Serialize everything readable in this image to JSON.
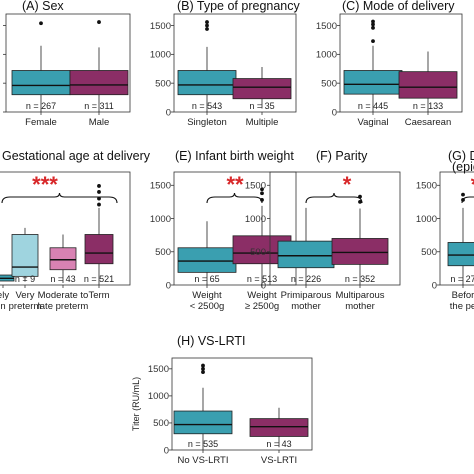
{
  "colors": {
    "teal": "#3a9fb0",
    "purple": "#8b2e66",
    "lightblue": "#9fd4df",
    "pink": "#d882b3",
    "stars": "#d8282a"
  },
  "chart_data": [
    {
      "type": "boxplot",
      "id": "A",
      "title": "(A)  Sex",
      "yticks": [
        0,
        500,
        1000,
        1500
      ],
      "ylim": [
        0,
        1700
      ],
      "boxes": [
        {
          "label": "Female",
          "n": "n = 267",
          "q1": 300,
          "median": 460,
          "q3": 720,
          "lo": 0,
          "hi": 1150,
          "outliers": [
            1540
          ],
          "color": "#3a9fb0"
        },
        {
          "label": "Male",
          "n": "n = 311",
          "q1": 300,
          "median": 470,
          "q3": 720,
          "lo": 0,
          "hi": 1120,
          "outliers": [
            1560
          ],
          "color": "#8b2e66"
        }
      ]
    },
    {
      "type": "boxplot",
      "id": "B",
      "title": "(B)  Type of pregnancy",
      "yticks": [
        0,
        500,
        1000,
        1500
      ],
      "ylim": [
        0,
        1700
      ],
      "boxes": [
        {
          "label": "Singleton",
          "n": "n = 543",
          "q1": 300,
          "median": 470,
          "q3": 720,
          "lo": 0,
          "hi": 1130,
          "outliers": [
            1440,
            1500,
            1560
          ],
          "color": "#3a9fb0"
        },
        {
          "label": "Multiple",
          "n": "n = 35",
          "q1": 230,
          "median": 430,
          "q3": 580,
          "lo": 60,
          "hi": 780,
          "outliers": [],
          "color": "#8b2e66"
        }
      ]
    },
    {
      "type": "boxplot",
      "id": "C",
      "title": "(C)  Mode of delivery",
      "yticks": [
        0,
        500,
        1000,
        1500
      ],
      "ylim": [
        0,
        1700
      ],
      "boxes": [
        {
          "label": "Vaginal",
          "n": "n = 445",
          "q1": 310,
          "median": 480,
          "q3": 720,
          "lo": 0,
          "hi": 1150,
          "outliers": [
            1230,
            1460,
            1520,
            1570
          ],
          "color": "#3a9fb0"
        },
        {
          "label": "Caesarean",
          "n": "n = 133",
          "q1": 240,
          "median": 430,
          "q3": 700,
          "lo": 0,
          "hi": 1050,
          "outliers": [],
          "color": "#8b2e66"
        }
      ]
    },
    {
      "type": "boxplot",
      "id": "D",
      "title": "Gestational age at delivery",
      "yticks": [],
      "ylim": [
        0,
        1700
      ],
      "stars": "***",
      "boxes": [
        {
          "label": "ely",
          "label2": "n",
          "n": "",
          "q1": 60,
          "median": 100,
          "q3": 150,
          "lo": 60,
          "hi": 150,
          "outliers": [],
          "color": "#3a9fb0"
        },
        {
          "label": "Very",
          "label2": "preterm",
          "n": "n = 9",
          "q1": 130,
          "median": 270,
          "q3": 760,
          "lo": 50,
          "hi": 860,
          "outliers": [],
          "color": "#9fd4df"
        },
        {
          "label": "Moderate to",
          "label2": "late preterm",
          "n": "n = 43",
          "q1": 230,
          "median": 380,
          "q3": 560,
          "lo": 30,
          "hi": 760,
          "outliers": [],
          "color": "#d882b3"
        },
        {
          "label": "Term",
          "label2": "",
          "n": "n = 521",
          "q1": 320,
          "median": 480,
          "q3": 760,
          "lo": 0,
          "hi": 1160,
          "outliers": [
            1210,
            1300,
            1400,
            1490
          ],
          "color": "#8b2e66"
        }
      ]
    },
    {
      "type": "boxplot",
      "id": "E",
      "title": "(E)  Infant birth weight",
      "yticks": [
        0,
        500,
        1000,
        1500
      ],
      "ylim": [
        0,
        1700
      ],
      "stars": "**",
      "boxes": [
        {
          "label": "Weight",
          "label2": "< 2500g",
          "n": "n = 65",
          "q1": 190,
          "median": 360,
          "q3": 560,
          "lo": 0,
          "hi": 960,
          "outliers": [],
          "color": "#3a9fb0"
        },
        {
          "label": "Weight",
          "label2": "≥ 2500g",
          "n": "n = 513",
          "q1": 320,
          "median": 480,
          "q3": 740,
          "lo": 0,
          "hi": 1190,
          "outliers": [
            1280,
            1380,
            1440
          ],
          "color": "#8b2e66"
        }
      ]
    },
    {
      "type": "boxplot",
      "id": "F",
      "title": "(F)  Parity",
      "yticks": [
        0,
        500,
        1000,
        1500
      ],
      "ylim": [
        0,
        1700
      ],
      "stars": "*",
      "boxes": [
        {
          "label": "Primiparous",
          "label2": "mother",
          "n": "n = 226",
          "q1": 260,
          "median": 440,
          "q3": 660,
          "lo": 0,
          "hi": 1160,
          "outliers": [],
          "color": "#3a9fb0"
        },
        {
          "label": "Multiparous",
          "label2": "mother",
          "n": "n = 352",
          "q1": 310,
          "median": 490,
          "q3": 700,
          "lo": 0,
          "hi": 1150,
          "outliers": [
            1250,
            1330
          ],
          "color": "#8b2e66"
        }
      ]
    },
    {
      "type": "boxplot",
      "id": "G",
      "title": "(G) D",
      "title2": "(epic",
      "yticks": [
        0,
        500,
        1000,
        1500
      ],
      "ylim": [
        0,
        1700
      ],
      "stars": "*",
      "boxes": [
        {
          "label": "Befor",
          "label2": "the pe",
          "n": "n = 27",
          "q1": 290,
          "median": 450,
          "q3": 640,
          "lo": 0,
          "hi": 1160,
          "outliers": [
            1280,
            1360
          ],
          "color": "#3a9fb0"
        }
      ]
    },
    {
      "type": "boxplot",
      "id": "H",
      "title": "(H)  VS-LRTI",
      "yticks": [
        0,
        500,
        1000,
        1500
      ],
      "ylim": [
        0,
        1700
      ],
      "ylabel": "Titer (RU/mL)",
      "boxes": [
        {
          "label": "No VS-LRTI",
          "label2": "",
          "n": "n = 535",
          "q1": 300,
          "median": 470,
          "q3": 720,
          "lo": 0,
          "hi": 1150,
          "outliers": [
            1440,
            1500,
            1560
          ],
          "color": "#3a9fb0"
        },
        {
          "label": "VS-LRTI",
          "label2": "",
          "n": "n = 43",
          "q1": 250,
          "median": 430,
          "q3": 580,
          "lo": 50,
          "hi": 780,
          "outliers": [],
          "color": "#8b2e66"
        }
      ]
    }
  ]
}
